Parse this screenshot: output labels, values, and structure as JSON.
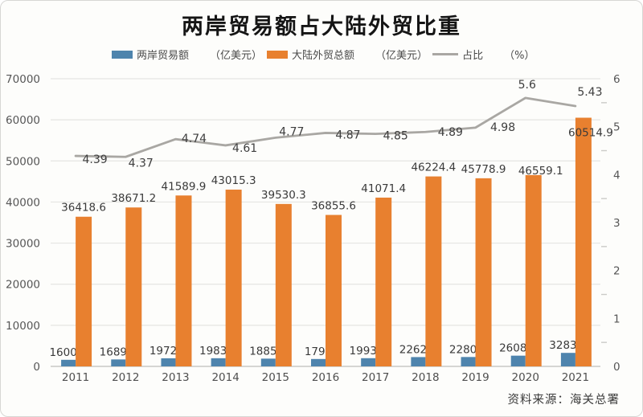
{
  "page": {
    "title": "两岸贸易额占大陆外贸比重",
    "source": "资料来源：海关总署"
  },
  "legend": {
    "items": [
      {
        "label": "两岸贸易额",
        "unit": "（亿美元）",
        "swatch": "bar",
        "color": "#4e84ad"
      },
      {
        "label": "大陆外贸总额",
        "unit": "（亿美元）",
        "swatch": "bar",
        "color": "#e8802f"
      },
      {
        "label": "占比",
        "unit": "（%）",
        "swatch": "line",
        "color": "#a9a7a3"
      }
    ]
  },
  "chart_data": {
    "type": "bar",
    "subtype": "grouped-bars-with-line",
    "title": "两岸贸易额占大陆外贸比重",
    "categories": [
      "2011",
      "2012",
      "2013",
      "2014",
      "2015",
      "2016",
      "2017",
      "2018",
      "2019",
      "2020",
      "2021"
    ],
    "series": [
      {
        "name": "两岸贸易额",
        "type": "bar",
        "axis": "left",
        "color": "#4e84ad",
        "values": [
          1600.3,
          1689.6,
          1972.8,
          1983.1,
          1885.6,
          1796,
          1993.9,
          2262.5,
          2280.8,
          2608.1,
          3283.4
        ]
      },
      {
        "name": "大陆外贸总额",
        "type": "bar",
        "axis": "left",
        "color": "#e8802f",
        "values": [
          36418.6,
          38671.2,
          41589.9,
          43015.3,
          39530.3,
          36855.6,
          41071.4,
          46224.4,
          45778.9,
          46559.1,
          60514.9
        ],
        "label_offsets": [
          [
            0,
            0
          ],
          [
            0,
            0
          ],
          [
            0,
            0
          ],
          [
            0,
            0
          ],
          [
            0,
            0
          ],
          [
            0,
            0
          ],
          [
            0,
            0
          ],
          [
            0,
            0
          ],
          [
            0,
            0
          ],
          [
            9,
            6
          ],
          [
            9,
            30
          ]
        ]
      },
      {
        "name": "占比",
        "type": "line",
        "axis": "right",
        "color": "#a9a7a3",
        "values": [
          4.39,
          4.37,
          4.74,
          4.61,
          4.77,
          4.87,
          4.85,
          4.89,
          4.98,
          5.6,
          5.43
        ],
        "label_offsets": [
          [
            24,
            9
          ],
          [
            19,
            12
          ],
          [
            23,
            4
          ],
          [
            24,
            8
          ],
          [
            20,
            -3
          ],
          [
            28,
            7
          ],
          [
            25,
            7
          ],
          [
            31,
            5
          ],
          [
            34,
            4
          ],
          [
            2,
            -12
          ],
          [
            18,
            -13
          ]
        ]
      }
    ],
    "left_axis": {
      "min": 0,
      "max": 70000,
      "step": 10000,
      "ticks": [
        "0",
        "10000",
        "20000",
        "30000",
        "40000",
        "50000",
        "60000",
        "70000"
      ]
    },
    "right_axis": {
      "min": 0,
      "max": 6,
      "step": 1,
      "ticks": [
        "0",
        "1",
        "2",
        "3",
        "4",
        "5",
        "6"
      ]
    },
    "xlabel": "",
    "ylabel": "",
    "grid": "horizontal",
    "legend_position": "top",
    "colors": {
      "grid": "#e5e5e2",
      "zero_line": "#c9c9c6",
      "axis_text": "#565656",
      "bar_label_text": "#3a3a3a",
      "line_label_text": "#3e3e3e"
    }
  }
}
